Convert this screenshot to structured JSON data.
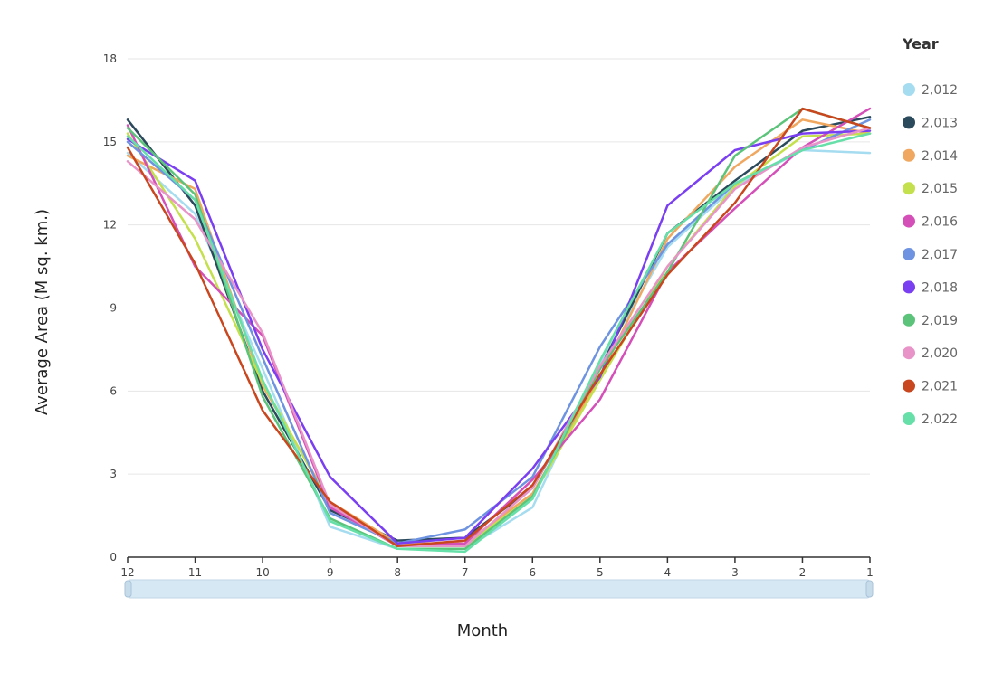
{
  "chart_data": {
    "type": "line",
    "title": "",
    "xlabel": "Month",
    "ylabel": "Average Area (M sq. km.)",
    "x": [
      "12",
      "11",
      "10",
      "9",
      "8",
      "7",
      "6",
      "5",
      "4",
      "3",
      "2",
      "1"
    ],
    "ylim": [
      0,
      18
    ],
    "yticks": [
      "0",
      "3",
      "6",
      "9",
      "12",
      "15",
      "18"
    ],
    "grid": true,
    "legend_title": "Year",
    "legend_position": "right",
    "series": [
      {
        "name": "2,012",
        "color": "#a6dcef",
        "values": [
          14.6,
          12.4,
          6.8,
          1.1,
          0.3,
          0.3,
          1.8,
          7.0,
          11.2,
          13.4,
          14.7,
          14.6
        ]
      },
      {
        "name": "2,013",
        "color": "#2b4a5c",
        "values": [
          15.8,
          12.7,
          6.0,
          1.7,
          0.6,
          0.7,
          2.5,
          6.8,
          11.7,
          13.6,
          15.4,
          15.9
        ]
      },
      {
        "name": "2,014",
        "color": "#f0a860",
        "values": [
          14.5,
          13.3,
          6.2,
          2.0,
          0.5,
          0.5,
          2.3,
          6.5,
          11.5,
          14.1,
          15.8,
          15.3
        ]
      },
      {
        "name": "2,015",
        "color": "#c4e04c",
        "values": [
          15.3,
          11.5,
          6.3,
          1.9,
          0.4,
          0.4,
          2.2,
          6.4,
          10.5,
          13.4,
          15.2,
          15.3
        ]
      },
      {
        "name": "2,016",
        "color": "#d44fb8",
        "values": [
          15.6,
          10.5,
          8.0,
          1.8,
          0.4,
          0.5,
          2.8,
          5.7,
          10.3,
          12.6,
          14.8,
          16.2
        ]
      },
      {
        "name": "2,017",
        "color": "#6e93e0",
        "values": [
          15.0,
          12.9,
          7.2,
          1.6,
          0.5,
          1.0,
          2.9,
          7.6,
          11.3,
          13.5,
          14.7,
          15.8
        ]
      },
      {
        "name": "2,018",
        "color": "#7a3ff0",
        "values": [
          15.1,
          13.6,
          7.5,
          2.9,
          0.5,
          0.7,
          3.2,
          6.5,
          12.7,
          14.7,
          15.3,
          15.4
        ]
      },
      {
        "name": "2,019",
        "color": "#5cc47a",
        "values": [
          15.5,
          13.1,
          5.8,
          1.4,
          0.3,
          0.3,
          2.2,
          6.8,
          10.3,
          14.5,
          16.2,
          15.5
        ]
      },
      {
        "name": "2,020",
        "color": "#e894c8",
        "values": [
          14.3,
          12.2,
          8.1,
          1.9,
          0.4,
          0.4,
          2.5,
          6.9,
          10.5,
          13.3,
          14.8,
          15.5
        ]
      },
      {
        "name": "2,021",
        "color": "#c9471e",
        "values": [
          14.8,
          10.6,
          5.3,
          2.0,
          0.4,
          0.6,
          2.6,
          6.6,
          10.2,
          12.8,
          16.2,
          15.5
        ]
      },
      {
        "name": "2,022",
        "color": "#66e0a8",
        "values": [
          15.2,
          12.9,
          6.4,
          1.3,
          0.3,
          0.2,
          2.1,
          7.1,
          11.7,
          13.5,
          14.7,
          15.3
        ]
      }
    ]
  }
}
